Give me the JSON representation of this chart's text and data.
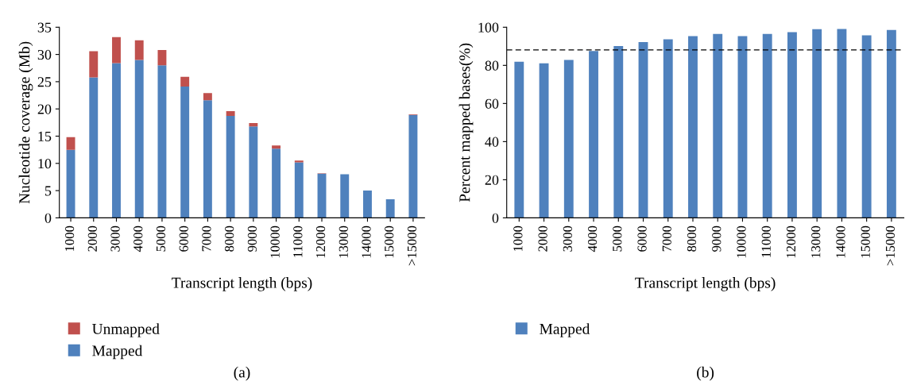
{
  "chart_data": [
    {
      "type": "bar",
      "stacked": true,
      "xlabel": "Transcript length (bps)",
      "ylabel": "Nucleotide coverage (Mb)",
      "categories": [
        "1000",
        "2000",
        "3000",
        "4000",
        "5000",
        "6000",
        "7000",
        "8000",
        "9000",
        "10000",
        "11000",
        "12000",
        "13000",
        "14000",
        "15000",
        ">15000"
      ],
      "series": [
        {
          "name": "Mapped",
          "color": "#4f81bd",
          "values": [
            12.5,
            25.8,
            28.4,
            29.0,
            28.0,
            24.1,
            21.6,
            18.7,
            16.8,
            12.7,
            10.2,
            8.1,
            8.0,
            5.0,
            3.4,
            18.9
          ]
        },
        {
          "name": "Unmapped",
          "color": "#c0504d",
          "values": [
            2.3,
            4.8,
            4.8,
            3.6,
            2.8,
            1.8,
            1.3,
            0.9,
            0.6,
            0.6,
            0.3,
            0.1,
            null,
            null,
            null,
            0.1
          ]
        }
      ],
      "ylim": [
        0,
        35
      ],
      "yticks": [
        0,
        5,
        10,
        15,
        20,
        25,
        30,
        35
      ],
      "grid": false,
      "legend": "bottom left",
      "annotations": [
        "(a)"
      ]
    },
    {
      "type": "bar",
      "xlabel": "Transcript length (bps)",
      "ylabel": "Percent mapped bases(%)",
      "categories": [
        "1000",
        "2000",
        "3000",
        "4000",
        "5000",
        "6000",
        "7000",
        "8000",
        "9000",
        "10000",
        "11000",
        "12000",
        "13000",
        "14000",
        "15000",
        ">15000"
      ],
      "series": [
        {
          "name": "Mapped",
          "color": "#4f81bd",
          "values": [
            81.9,
            81.1,
            82.8,
            87.5,
            90.1,
            92.2,
            93.7,
            95.3,
            96.5,
            95.3,
            96.5,
            97.4,
            99.0,
            99.1,
            95.7,
            98.6
          ]
        }
      ],
      "ylim": [
        0,
        100
      ],
      "yticks": [
        0,
        20,
        40,
        60,
        80,
        100
      ],
      "grid": false,
      "legend": "bottom left",
      "ref_lines": [
        {
          "axis": "y",
          "value": 88.1,
          "color": "#000000",
          "line_style": "dashed"
        }
      ],
      "annotations": [
        "(b)"
      ]
    }
  ]
}
